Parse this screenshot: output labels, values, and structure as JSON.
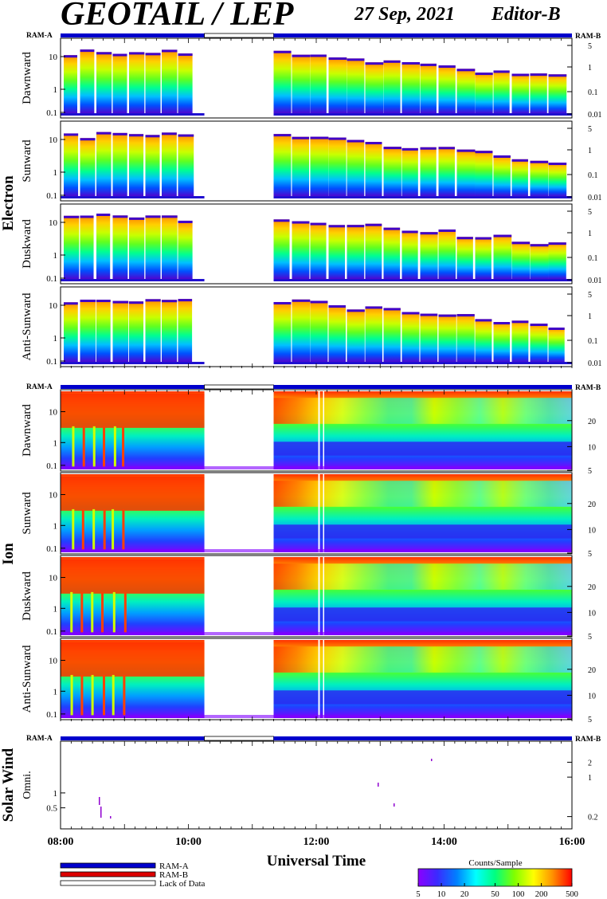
{
  "header": {
    "title": "GEOTAIL / LEP",
    "date": "27 Sep, 2021",
    "editor": "Editor-B"
  },
  "colors": {
    "ram_a": "#0000cc",
    "ram_b": "#dd0000",
    "lack_of_data": "#ffffff",
    "colorbar": [
      "#8b00ff",
      "#3a2bff",
      "#0080ff",
      "#00ffff",
      "#00ff80",
      "#80ff00",
      "#ffff00",
      "#ff9000",
      "#ff0000"
    ]
  },
  "groups": {
    "electron": "Electron",
    "ion": "Ion",
    "solar_wind": "Solar Wind"
  },
  "mode_labels": {
    "ram_a": "RAM-A",
    "ram_b": "RAM-B"
  },
  "electron_panels": [
    {
      "label": "Dawnward",
      "left_ticks": [
        "10",
        "1",
        "0.1"
      ],
      "right_ticks": [
        "5",
        "1",
        "0.1",
        "0.01"
      ]
    },
    {
      "label": "Sunward",
      "left_ticks": [
        "10",
        "1",
        "0.1"
      ],
      "right_ticks": [
        "5",
        "1",
        "0.1",
        "0.01"
      ]
    },
    {
      "label": "Duskward",
      "left_ticks": [
        "10",
        "1",
        "0.1"
      ],
      "right_ticks": [
        "5",
        "1",
        "0.1",
        "0.01"
      ]
    },
    {
      "label": "Anti-Sunward",
      "left_ticks": [
        "10",
        "1",
        "0.1"
      ],
      "right_ticks": [
        "5",
        "1",
        "0.1",
        "0.01"
      ]
    }
  ],
  "ion_panels": [
    {
      "label": "Dawnward",
      "left_ticks": [
        "10",
        "1",
        "0.1"
      ],
      "right_ticks": [
        "20",
        "10",
        "5"
      ]
    },
    {
      "label": "Sunward",
      "left_ticks": [
        "10",
        "1",
        "0.1"
      ],
      "right_ticks": [
        "20",
        "10",
        "5"
      ]
    },
    {
      "label": "Duskward",
      "left_ticks": [
        "10",
        "1",
        "0.1"
      ],
      "right_ticks": [
        "20",
        "10",
        "5"
      ]
    },
    {
      "label": "Anti-Sunward",
      "left_ticks": [
        "10",
        "1",
        "0.1"
      ],
      "right_ticks": [
        "20",
        "10",
        "5"
      ]
    }
  ],
  "sw_panel": {
    "label": "Omni.",
    "left_ticks": [
      "1",
      "0.5"
    ],
    "right_ticks": [
      "2",
      "1",
      "0.2"
    ]
  },
  "chart_data": {
    "type": "heatmap",
    "xlabel": "Universal Time",
    "x_ticks": [
      "08:00",
      "10:00",
      "12:00",
      "14:00",
      "16:00"
    ],
    "xlim": [
      "08:00",
      "16:00"
    ],
    "data_gaps": [
      [
        "10:15",
        "11:20"
      ]
    ],
    "mode_bar": [
      {
        "mode": "RAM-A",
        "from": "08:00",
        "to": "10:15"
      },
      {
        "mode": "Lack of Data",
        "from": "10:15",
        "to": "11:20"
      },
      {
        "mode": "RAM-A",
        "from": "11:20",
        "to": "16:00"
      }
    ],
    "colorbar": {
      "label": "Counts/Sample",
      "ticks": [
        "5",
        "10",
        "20",
        "50",
        "100",
        "200",
        "500"
      ],
      "min": 5,
      "max": 500,
      "scale": "log"
    },
    "legend": [
      "RAM-A",
      "RAM-B",
      "Lack of Data"
    ]
  }
}
